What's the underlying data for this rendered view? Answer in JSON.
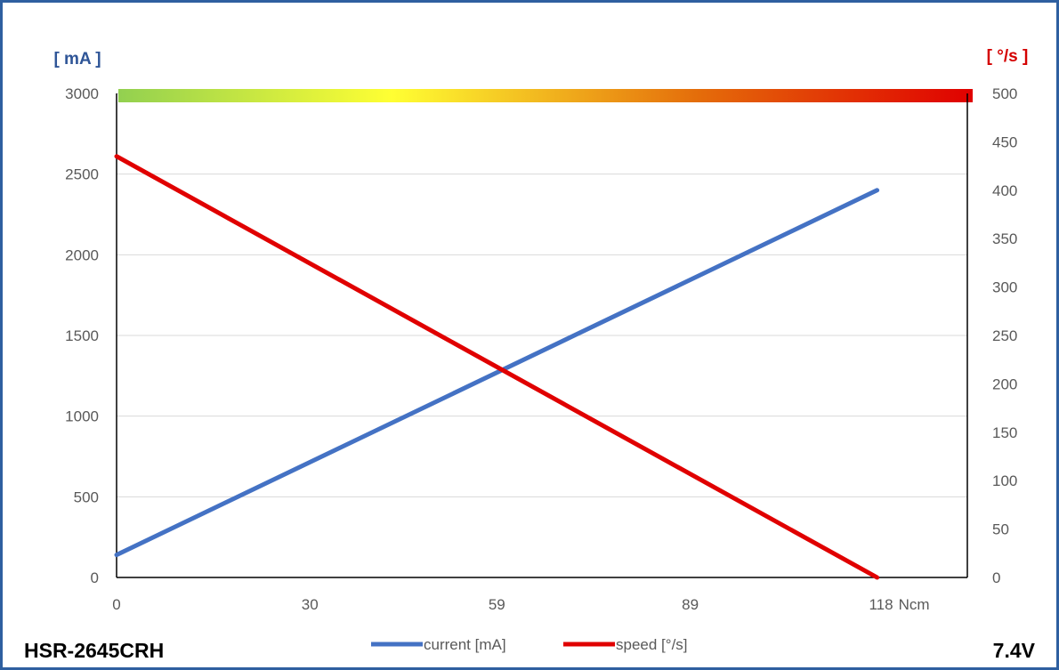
{
  "chart_data": {
    "type": "line",
    "title": "",
    "model": "HSR-2645CRH",
    "voltage": "7.4V",
    "left_axis_unit": "[ mA ]",
    "right_axis_unit": "[ °/s ]",
    "x_unit": "Ncm",
    "x_ticks": [
      "0",
      "30",
      "59",
      "89",
      "118"
    ],
    "x_values": [
      0,
      30,
      59,
      89,
      118
    ],
    "xlim": [
      0,
      132
    ],
    "ylim_left": [
      0,
      3000
    ],
    "ylim_right": [
      0,
      500
    ],
    "y_left_ticks": [
      0,
      500,
      1000,
      1500,
      2000,
      2500,
      3000
    ],
    "y_right_ticks": [
      0,
      50,
      100,
      150,
      200,
      250,
      300,
      350,
      400,
      450,
      500
    ],
    "grid": "horizontal",
    "gradient_band": [
      "#92d050",
      "#ffff33",
      "#e46c0a",
      "#e00000"
    ],
    "series": [
      {
        "name": "current [mA]",
        "axis": "left",
        "color": "#4472c4",
        "x": [
          0,
          118
        ],
        "y": [
          140,
          2400
        ]
      },
      {
        "name": "speed [°/s]",
        "axis": "right",
        "color": "#e00000",
        "x": [
          0,
          118
        ],
        "y": [
          435,
          0
        ]
      }
    ],
    "legend_position": "bottom"
  }
}
